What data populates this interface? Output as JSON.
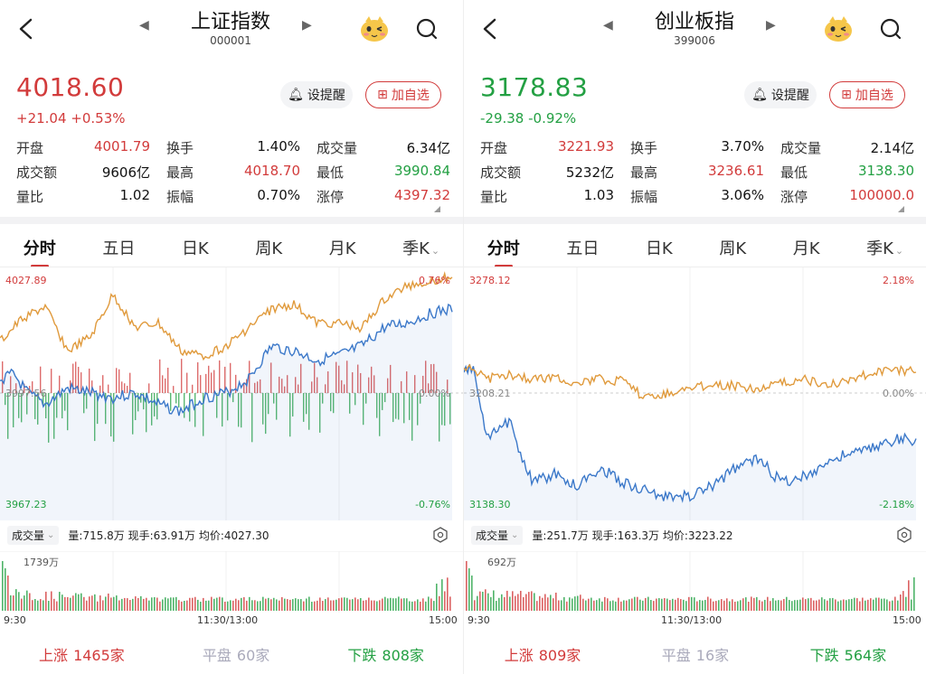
{
  "panels": [
    {
      "title": "上证指数",
      "code": "000001",
      "price": "4018.60",
      "change": "+21.04  +0.53%",
      "trend": "up",
      "alert_label": "设提醒",
      "fav_label": "加自选",
      "stats": [
        [
          {
            "label": "开盘",
            "value": "4001.79",
            "color": "red"
          },
          {
            "label": "换手",
            "value": "1.40%",
            "color": ""
          },
          {
            "label": "成交量",
            "value": "6.34亿",
            "color": ""
          }
        ],
        [
          {
            "label": "成交额",
            "value": "9606亿",
            "color": ""
          },
          {
            "label": "最高",
            "value": "4018.70",
            "color": "red"
          },
          {
            "label": "最低",
            "value": "3990.84",
            "color": "green"
          }
        ],
        [
          {
            "label": "量比",
            "value": "1.02",
            "color": ""
          },
          {
            "label": "振幅",
            "value": "0.70%",
            "color": ""
          },
          {
            "label": "涨停",
            "value": "4397.32",
            "color": "red"
          }
        ]
      ],
      "tabs": [
        "分时",
        "五日",
        "日K",
        "周K",
        "月K",
        "季K"
      ],
      "chart": {
        "high": "4027.89",
        "high_pct": "0.76%",
        "mid": "3997.56",
        "mid_pct": "0.00%",
        "low": "3967.23",
        "low_pct": "-0.76%"
      },
      "volume_label": "成交量",
      "volume_info": "量:715.8万  现手:63.91万  均价:4027.30",
      "volume_max": "1739万",
      "times": [
        "9:30",
        "11:30/13:00",
        "15:00"
      ],
      "breadth": {
        "up_label": "上涨",
        "up": "1465家",
        "flat_label": "平盘",
        "flat": "60家",
        "down_label": "下跌",
        "down": "808家"
      }
    },
    {
      "title": "创业板指",
      "code": "399006",
      "price": "3178.83",
      "change": "-29.38  -0.92%",
      "trend": "down",
      "alert_label": "设提醒",
      "fav_label": "加自选",
      "stats": [
        [
          {
            "label": "开盘",
            "value": "3221.93",
            "color": "red"
          },
          {
            "label": "换手",
            "value": "3.70%",
            "color": ""
          },
          {
            "label": "成交量",
            "value": "2.14亿",
            "color": ""
          }
        ],
        [
          {
            "label": "成交额",
            "value": "5232亿",
            "color": ""
          },
          {
            "label": "最高",
            "value": "3236.61",
            "color": "red"
          },
          {
            "label": "最低",
            "value": "3138.30",
            "color": "green"
          }
        ],
        [
          {
            "label": "量比",
            "value": "1.03",
            "color": ""
          },
          {
            "label": "振幅",
            "value": "3.06%",
            "color": ""
          },
          {
            "label": "涨停",
            "value": "100000.0",
            "color": "red"
          }
        ]
      ],
      "tabs": [
        "分时",
        "五日",
        "日K",
        "周K",
        "月K",
        "季K"
      ],
      "chart": {
        "high": "3278.12",
        "high_pct": "2.18%",
        "mid": "3208.21",
        "mid_pct": "0.00%",
        "low": "3138.30",
        "low_pct": "-2.18%"
      },
      "volume_label": "成交量",
      "volume_info": "量:251.7万  现手:163.3万  均价:3223.22",
      "volume_max": "692万",
      "times": [
        "9:30",
        "11:30/13:00",
        "15:00"
      ],
      "breadth": {
        "up_label": "上涨",
        "up": "809家",
        "flat_label": "平盘",
        "flat": "16家",
        "down_label": "下跌",
        "down": "564家"
      }
    }
  ],
  "colors": {
    "up": "#d23b3b",
    "down": "#23a043",
    "avg_line": "#e09a3c",
    "price_line": "#3b78c9"
  }
}
